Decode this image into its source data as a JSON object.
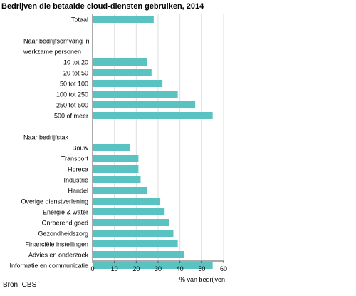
{
  "chart_data": {
    "type": "bar",
    "orientation": "horizontal",
    "title": "Bedrijven die betaalde cloud-diensten gebruiken, 2014",
    "xlabel": "% van bedrijven",
    "ylabel": "",
    "xlim": [
      0,
      60
    ],
    "xticks": [
      0,
      10,
      20,
      30,
      40,
      50,
      60
    ],
    "bar_color": "#5bc2c2",
    "grid": "vertical gridlines",
    "rows": [
      {
        "label": "Totaal",
        "value": 28
      },
      {
        "label": "",
        "value": null
      },
      {
        "label": "Naar bedrijfsomvang in",
        "value": null,
        "header": true
      },
      {
        "label": "werkzame personen",
        "value": null,
        "header": true
      },
      {
        "label": "10 tot 20",
        "value": 25
      },
      {
        "label": "20 tot 50",
        "value": 27
      },
      {
        "label": "50 tot 100",
        "value": 32
      },
      {
        "label": "100 tot 250",
        "value": 39
      },
      {
        "label": "250 tot 500",
        "value": 47
      },
      {
        "label": "500 of meer",
        "value": 55
      },
      {
        "label": "",
        "value": null
      },
      {
        "label": "Naar bedrijfstak",
        "value": null,
        "header": true
      },
      {
        "label": "Bouw",
        "value": 17
      },
      {
        "label": "Transport",
        "value": 21
      },
      {
        "label": "Horeca",
        "value": 21
      },
      {
        "label": "Industrie",
        "value": 22
      },
      {
        "label": "Handel",
        "value": 25
      },
      {
        "label": "Overige dienstverlening",
        "value": 31
      },
      {
        "label": "Energie & water",
        "value": 33
      },
      {
        "label": "Onroerend goed",
        "value": 35
      },
      {
        "label": "Gezondheidszorg",
        "value": 37
      },
      {
        "label": "Financiële instellingen",
        "value": 39
      },
      {
        "label": "Advies en onderzoek",
        "value": 42
      },
      {
        "label": "Informatie en communicatie",
        "value": 55
      }
    ]
  },
  "source": "Bron: CBS"
}
